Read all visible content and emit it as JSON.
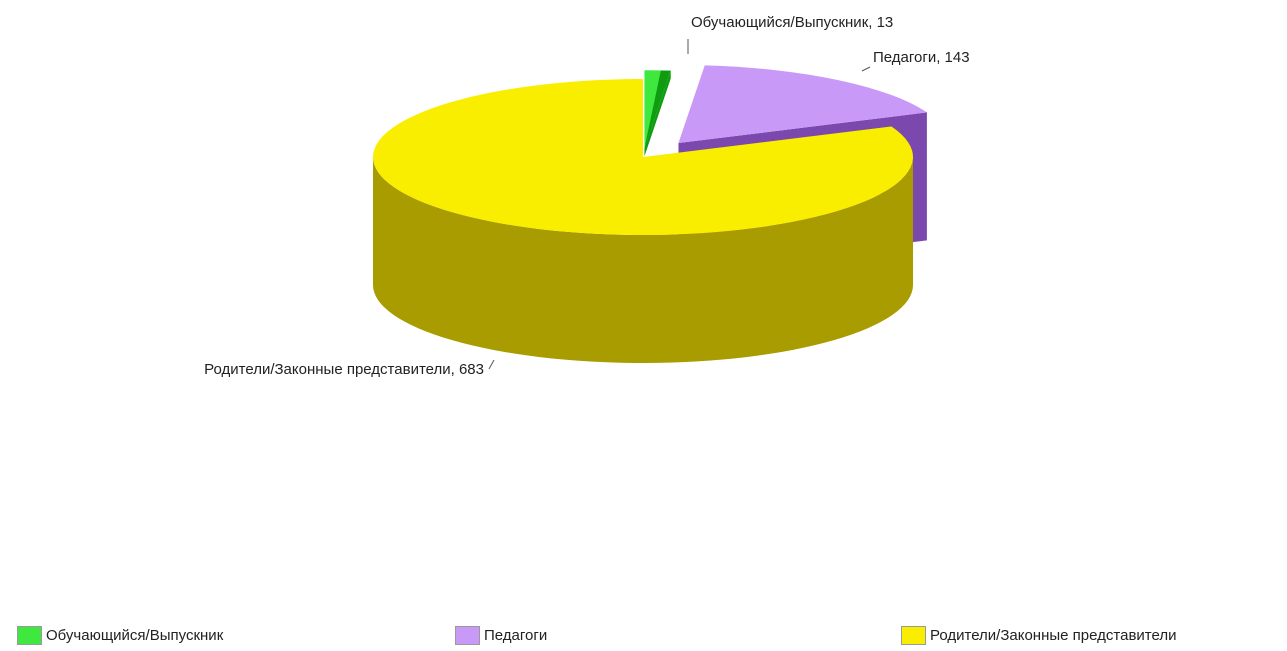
{
  "chart_data": {
    "type": "pie",
    "variant": "3d-exploded",
    "title": "",
    "slices": [
      {
        "label": "Обучающийся/Выпускник",
        "value": 13,
        "data_label": "Обучающийся/Выпускник, 13",
        "color": "#3ee83e",
        "shadow": "#109c10"
      },
      {
        "label": "Педагоги",
        "value": 143,
        "data_label": "Педагоги, 143",
        "color": "#c999f7",
        "shadow": "#7b48ae"
      },
      {
        "label": "Родители/Законные представители",
        "value": 683,
        "data_label": "Родители/Законные представители, 683",
        "color": "#f9ee00",
        "shadow": "#a89c00"
      }
    ],
    "legend_position": "bottom"
  }
}
